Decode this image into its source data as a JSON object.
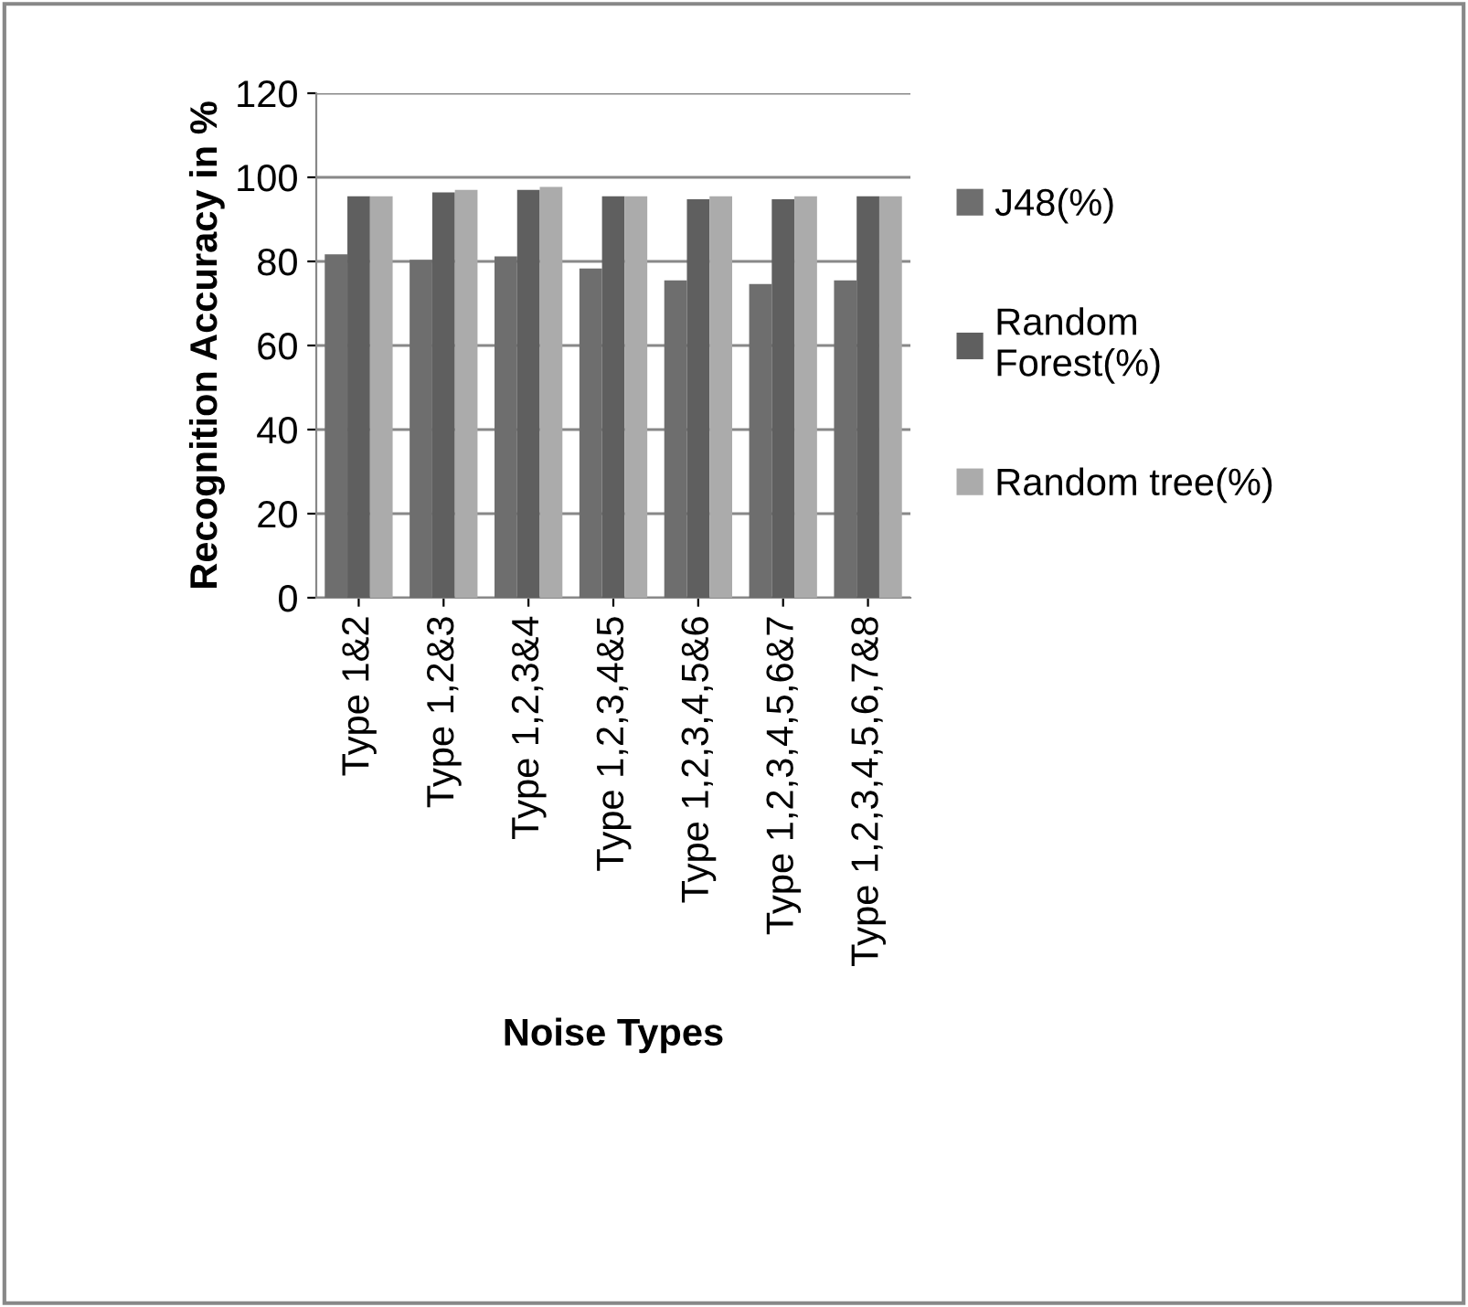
{
  "chart_data": {
    "type": "bar",
    "xlabel": "Noise Types",
    "ylabel": "Recognition Accuracy in %",
    "categories": [
      "Type 1&2",
      "Type 1,2&3",
      "Type 1,2,3&4",
      "Type 1,2,3,4&5",
      "Type 1,2,3,4,5&6",
      "Type 1,2,3,4,5,6&7",
      "Type 1,2,3,4,5,6,7&8"
    ],
    "series": [
      {
        "name": "J48(%)",
        "color": "#6e6e6e",
        "values": [
          81.7,
          80.4,
          81.2,
          78.3,
          75.5,
          74.6,
          75.5
        ]
      },
      {
        "name": "Random\nForest(%)",
        "color": "#5f5f5f",
        "values": [
          95.5,
          96.4,
          97,
          95.5,
          94.8,
          94.8,
          95.5
        ]
      },
      {
        "name": "Random tree(%)",
        "color": "#ababab",
        "values": [
          95.5,
          97,
          97.7,
          95.5,
          95.5,
          95.5,
          95.5
        ]
      }
    ],
    "ylim": [
      0,
      120
    ],
    "yticks": [
      0,
      20,
      40,
      60,
      80,
      100,
      120
    ],
    "grid": "y",
    "legend": "right"
  }
}
